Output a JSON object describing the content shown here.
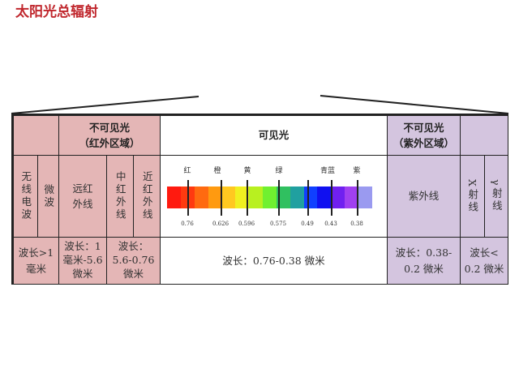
{
  "title": "太阳光总辐射",
  "header": {
    "infrared": [
      "不可见光",
      "（红外区域）"
    ],
    "visible": "可见光",
    "ultraviolet": [
      "不可见光",
      "（紫外区域）"
    ]
  },
  "bands": {
    "radio": "无线电波",
    "microwave": "微波",
    "far_ir": "远红外线",
    "mid_ir": "中红外线",
    "near_ir": "近红外线",
    "uv": "紫外线",
    "xray": "X射线",
    "gamma": "γ射线"
  },
  "wavelengths": {
    "radio_micro": [
      "波长>1",
      "毫米"
    ],
    "far_ir": [
      "波长：1",
      "毫米-5.6",
      "微米"
    ],
    "mid_near_ir": [
      "波长：",
      "5.6-0.76",
      "微米"
    ],
    "visible": "波长：0.76-0.38 微米",
    "uv": [
      "波长：0.38-",
      "0.2 微米"
    ],
    "xray_gamma": [
      "波长<",
      "0.2 微米"
    ]
  },
  "spectrum": {
    "colors": [
      "红",
      "橙",
      "黄",
      "绿",
      "青蓝",
      "紫"
    ],
    "ticks": [
      "0.76",
      "0.626",
      "0.596",
      "0.575",
      "0.49",
      "0.43",
      "0.38"
    ],
    "gradient": [
      "#ff1a0f",
      "#ff3a10",
      "#ff6a10",
      "#ff9a10",
      "#ffc820",
      "#f0f020",
      "#b8f020",
      "#70f030",
      "#30c060",
      "#20a0a0",
      "#1040ff",
      "#1010f0",
      "#7020f0",
      "#a040f0",
      "#9a9af0"
    ],
    "colors_theme": {
      "infrared": "#e4b6b6",
      "ultraviolet": "#d4c5df",
      "title": "#c0272d"
    }
  }
}
